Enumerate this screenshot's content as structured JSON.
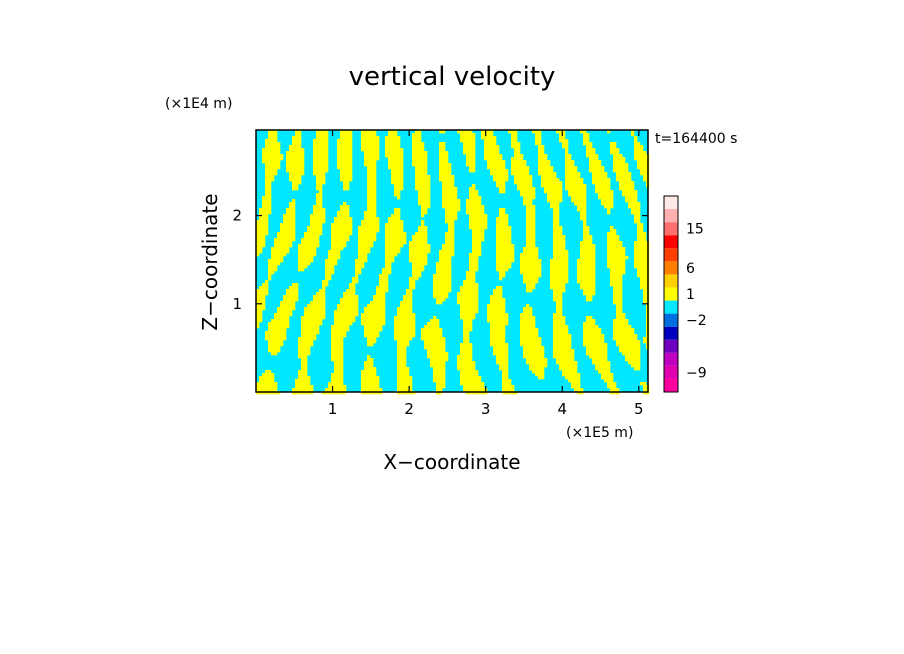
{
  "chart_data": {
    "type": "heatmap",
    "title": "vertical velocity",
    "xlabel": "X−coordinate",
    "ylabel": "Z−coordinate",
    "x_unit": "(×1E5 m)",
    "y_unit": "(×1E4 m)",
    "time_label": "t=164400 s",
    "xlim": [
      0.0,
      5.12
    ],
    "ylim": [
      0.0,
      2.97
    ],
    "x_ticks": [
      1,
      2,
      3,
      4,
      5
    ],
    "y_ticks": [
      1,
      2
    ],
    "dominant_field_colors": [
      "#00e8ff",
      "#ffff00"
    ],
    "colorbar": {
      "levels": [
        {
          "color": "#ff00a0",
          "label": ""
        },
        {
          "color": "#e000b0",
          "label": "−9"
        },
        {
          "color": "#c000c0",
          "label": ""
        },
        {
          "color": "#7000c0",
          "label": ""
        },
        {
          "color": "#0000c0",
          "label": ""
        },
        {
          "color": "#0070e0",
          "label": "−2"
        },
        {
          "color": "#00e8ff",
          "label": ""
        },
        {
          "color": "#ffff00",
          "label": "1"
        },
        {
          "color": "#ffd000",
          "label": ""
        },
        {
          "color": "#ff8000",
          "label": "6"
        },
        {
          "color": "#ff4000",
          "label": ""
        },
        {
          "color": "#ff0000",
          "label": ""
        },
        {
          "color": "#ff7070",
          "label": "15"
        },
        {
          "color": "#ffb0b0",
          "label": ""
        },
        {
          "color": "#ffe8e8",
          "label": ""
        }
      ]
    }
  }
}
